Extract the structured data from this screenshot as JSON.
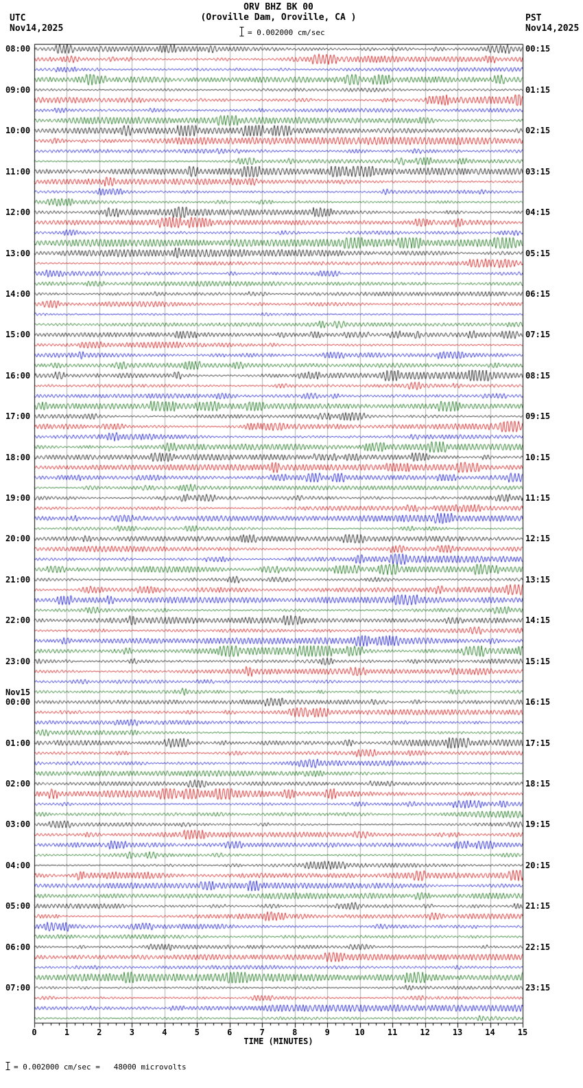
{
  "header": {
    "title": "ORV BHZ BK 00",
    "subtitle": "(Oroville Dam, Oroville, CA )",
    "left_tz": "UTC",
    "left_date": "Nov14,2025",
    "right_tz": "PST",
    "right_date": "Nov14,2025",
    "scale_label": "= 0.002000 cm/sec"
  },
  "axis": {
    "label": "TIME (MINUTES)",
    "tick_labels": [
      "0",
      "1",
      "2",
      "3",
      "4",
      "5",
      "6",
      "7",
      "8",
      "9",
      "10",
      "11",
      "12",
      "13",
      "14",
      "15"
    ]
  },
  "left_labels": [
    "08:00",
    "09:00",
    "10:00",
    "11:00",
    "12:00",
    "13:00",
    "14:00",
    "15:00",
    "16:00",
    "17:00",
    "18:00",
    "19:00",
    "20:00",
    "21:00",
    "22:00",
    "23:00",
    "00:00",
    "01:00",
    "02:00",
    "03:00",
    "04:00",
    "05:00",
    "06:00",
    "07:00"
  ],
  "left_date_break": {
    "label": "Nov15",
    "before_hour": "00:00",
    "hour_index": 16
  },
  "right_labels": [
    "00:15",
    "01:15",
    "02:15",
    "03:15",
    "04:15",
    "05:15",
    "06:15",
    "07:15",
    "08:15",
    "09:15",
    "10:15",
    "11:15",
    "12:15",
    "13:15",
    "14:15",
    "15:15",
    "16:15",
    "17:15",
    "18:15",
    "19:15",
    "20:15",
    "21:15",
    "22:15",
    "23:15"
  ],
  "footer": {
    "scale_note": "= 0.002000 cm/sec =   48000 microvolts"
  },
  "chart_data": {
    "type": "line",
    "subtype": "helicorder-seismogram",
    "station_code": "ORV",
    "channel": "BHZ",
    "network": "BK",
    "location_code": "00",
    "site_name": "Oroville Dam, Oroville, CA",
    "utc_start_date": "Nov14,2025",
    "utc_first_row_time": "08:00",
    "local_timezone": "PST",
    "local_first_row_end_time": "00:15",
    "x_axis": {
      "label": "TIME (MINUTES)",
      "min": 0,
      "max": 15,
      "tick_interval": 1
    },
    "minutes_per_row": 15,
    "rows_total": 96,
    "rows_per_hour": 4,
    "hours_utc": [
      "08:00",
      "09:00",
      "10:00",
      "11:00",
      "12:00",
      "13:00",
      "14:00",
      "15:00",
      "16:00",
      "17:00",
      "18:00",
      "19:00",
      "20:00",
      "21:00",
      "22:00",
      "23:00",
      "00:00",
      "01:00",
      "02:00",
      "03:00",
      "04:00",
      "05:00",
      "06:00",
      "07:00"
    ],
    "trace_color_cycle": [
      "#000000",
      "#cc0000",
      "#0000cc",
      "#006600"
    ],
    "grid": true,
    "amplitude_scale": "0.002000 cm/sec",
    "gain_equivalence": "48000 microvolts",
    "signal_description": "continuous ambient seismic background noise with intermittent small-amplitude microseism bursts; no prominent earthquake arrivals visible"
  }
}
